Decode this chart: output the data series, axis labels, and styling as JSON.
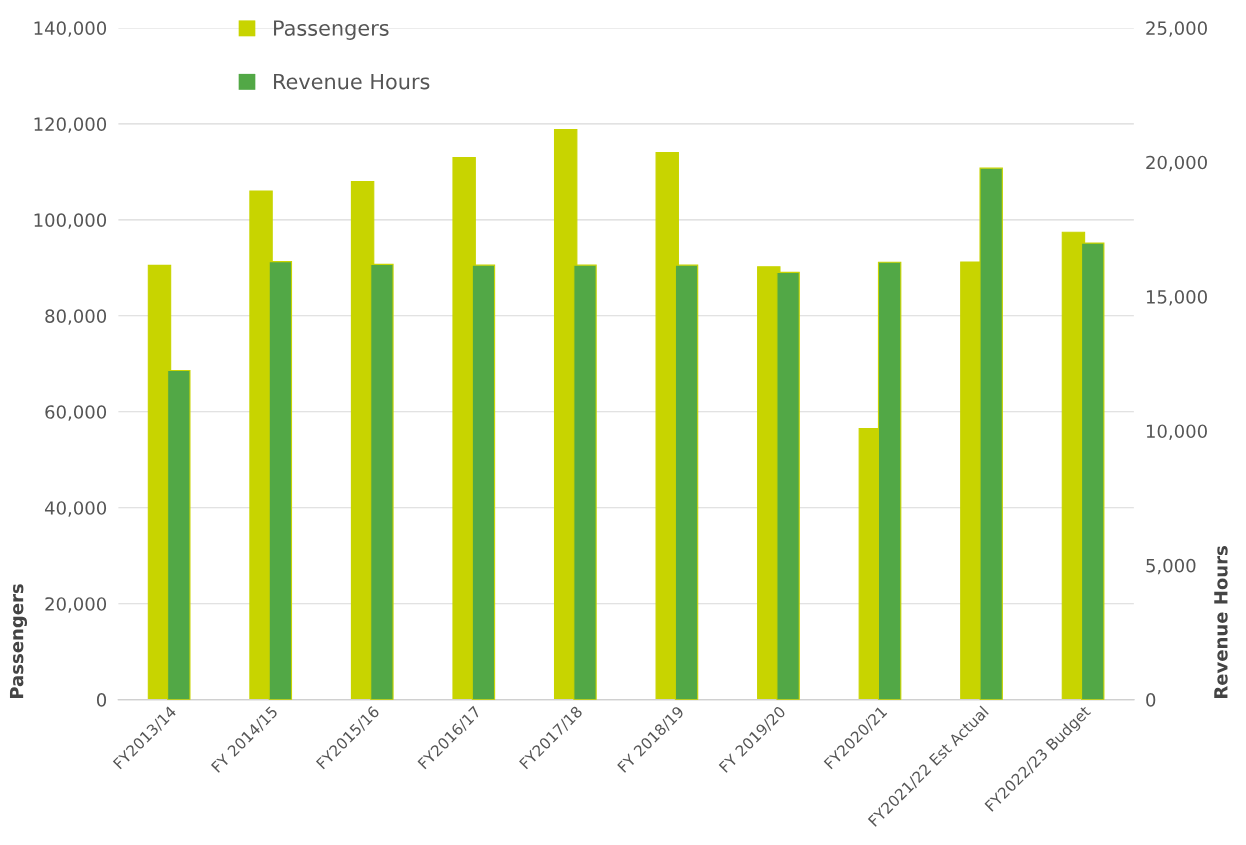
{
  "chart_data": {
    "type": "bar",
    "categories": [
      "FY2013/14",
      "FY 2014/15",
      "FY2015/16",
      "FY2016/17",
      "FY2017/18",
      "FY 2018/19",
      "FY 2019/20",
      "FY2020/21",
      "FY2021/22 Est Actual",
      "FY2022/23 Budget"
    ],
    "series": [
      {
        "name": "Passengers",
        "color": "#c8d400",
        "values": [
          90500,
          106000,
          108000,
          113000,
          118800,
          114000,
          90200,
          56500,
          91200,
          97400
        ]
      },
      {
        "name": "Revenue Hours",
        "color": "#52a846",
        "axis": "y2",
        "values": [
          12250,
          16300,
          16200,
          16170,
          16170,
          16170,
          15900,
          16280,
          19780,
          16990
        ]
      }
    ],
    "ylabel": "Passengers",
    "y2label": "Revenue Hours",
    "ylim": [
      0,
      140000
    ],
    "yticks": [
      {
        "value": 0,
        "label": "0"
      },
      {
        "value": 20000,
        "label": "20,000"
      },
      {
        "value": 40000,
        "label": "40,000"
      },
      {
        "value": 60000,
        "label": "60,000"
      },
      {
        "value": 80000,
        "label": "80,000"
      },
      {
        "value": 100000,
        "label": "100,000"
      },
      {
        "value": 120000,
        "label": "120,000"
      },
      {
        "value": 140000,
        "label": "140,000"
      }
    ],
    "y2lim": [
      0,
      25000
    ],
    "y2ticks": [
      {
        "value": 0,
        "label": "0"
      },
      {
        "value": 5000,
        "label": "5,000"
      },
      {
        "value": 10000,
        "label": "10,000"
      },
      {
        "value": 15000,
        "label": "15,000"
      },
      {
        "value": 20000,
        "label": "20,000"
      },
      {
        "value": 25000,
        "label": "25,000"
      }
    ],
    "grid": "y",
    "legend": "top left"
  }
}
